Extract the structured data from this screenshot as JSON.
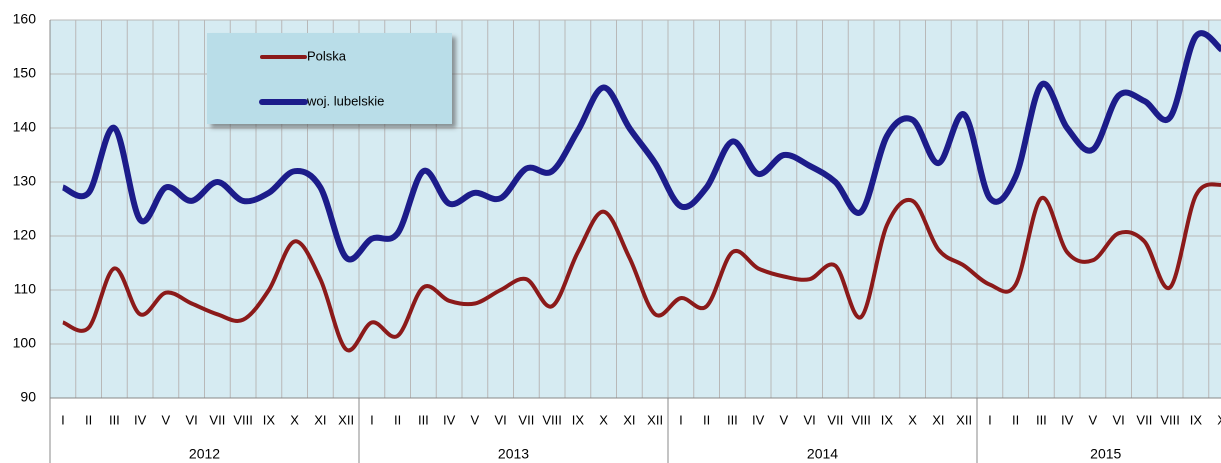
{
  "chart_data": {
    "type": "line",
    "categories": [
      "I",
      "II",
      "III",
      "IV",
      "V",
      "VI",
      "VII",
      "VIII",
      "IX",
      "X",
      "XI",
      "XII",
      "I",
      "II",
      "III",
      "IV",
      "V",
      "VI",
      "VII",
      "VIII",
      "IX",
      "X",
      "XI",
      "XII",
      "I",
      "II",
      "III",
      "IV",
      "V",
      "VI",
      "VII",
      "VIII",
      "IX",
      "X",
      "XI",
      "XII",
      "I",
      "II",
      "III",
      "IV",
      "V",
      "VI",
      "VII",
      "VIII",
      "IX",
      "X"
    ],
    "years": [
      "2012",
      "2013",
      "2014",
      "2015"
    ],
    "series": [
      {
        "name": "Polska",
        "color": "#8b1a1a",
        "values": [
          104,
          103,
          114,
          105.5,
          109.5,
          107.5,
          105.5,
          104.5,
          110,
          119,
          112,
          99,
          104,
          101.5,
          110.5,
          108,
          107.5,
          110,
          112,
          107,
          117,
          124.5,
          116,
          105.5,
          108.5,
          107,
          117,
          114,
          112.5,
          112,
          114.5,
          105,
          122,
          126.5,
          117.5,
          114.5,
          111,
          111,
          127,
          117,
          115.5,
          120.5,
          119,
          110.5,
          127.5,
          129.5
        ]
      },
      {
        "name": "woj. lubelskie",
        "color": "#1c1c8a",
        "values": [
          129,
          128,
          140,
          123,
          129,
          126.5,
          130,
          126.5,
          128,
          132,
          129,
          116,
          119.5,
          120.5,
          132,
          126,
          128,
          127,
          132.5,
          132,
          139.5,
          147.5,
          140,
          133.5,
          125.5,
          129,
          137.5,
          131.5,
          135,
          133,
          130,
          124.5,
          138.5,
          141.5,
          133.5,
          142.5,
          127,
          131,
          148,
          140,
          136,
          146,
          145,
          142,
          157,
          154.5
        ]
      }
    ],
    "ylim": [
      90,
      160
    ],
    "yticks": [
      90,
      100,
      110,
      120,
      130,
      140,
      150,
      160
    ],
    "grid": true
  }
}
